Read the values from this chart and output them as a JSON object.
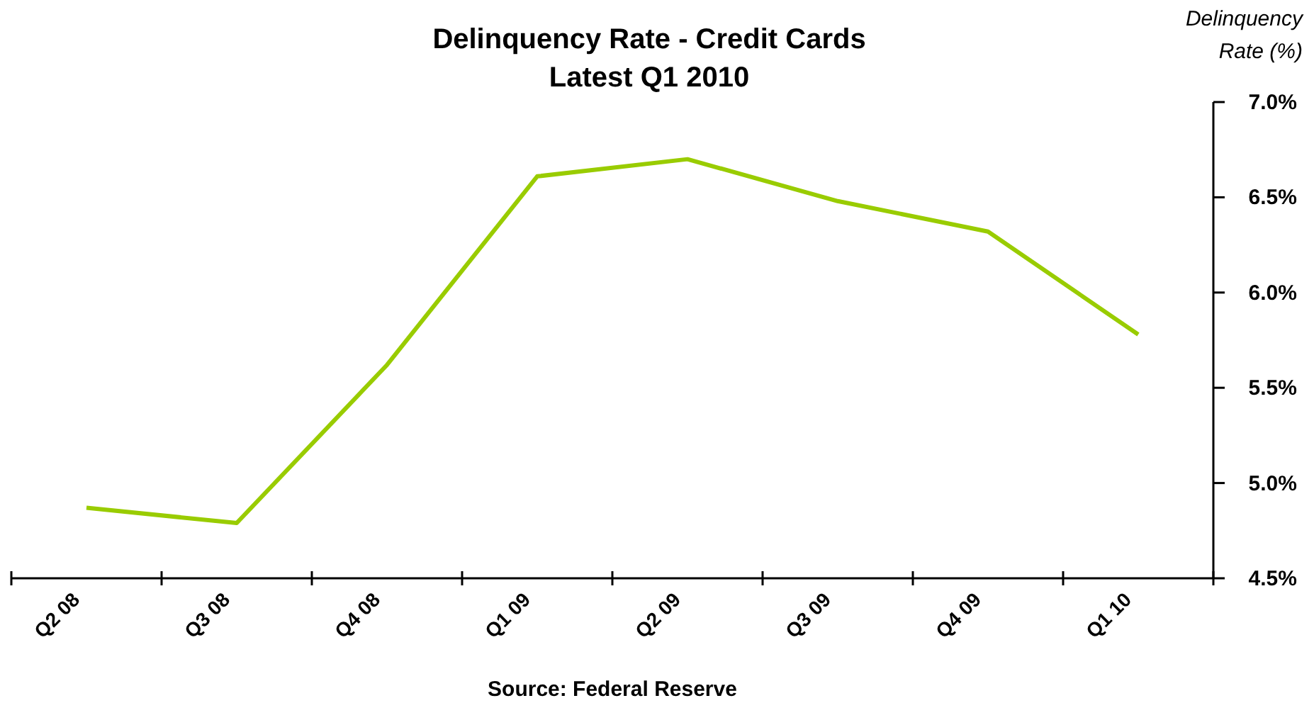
{
  "chart_data": {
    "type": "line",
    "title": "Delinquency Rate - Credit Cards",
    "subtitle": "Latest Q1 2010",
    "ylabel": "Delinquency Rate (%)",
    "categories": [
      "Q2 08",
      "Q3 08",
      "Q4 08",
      "Q1 09",
      "Q2 09",
      "Q3 09",
      "Q4 09",
      "Q1 10"
    ],
    "series": [
      {
        "color": "#99cc00",
        "values": [
          4.87,
          4.79,
          5.62,
          6.61,
          6.7,
          6.48,
          6.32,
          5.78
        ]
      }
    ],
    "ylim": [
      4.5,
      7.0
    ],
    "yticks": [
      {
        "value": 4.5,
        "label": "4.5%"
      },
      {
        "value": 5.0,
        "label": "5.0%"
      },
      {
        "value": 5.5,
        "label": "5.5%"
      },
      {
        "value": 6.0,
        "label": "6.0%"
      },
      {
        "value": 6.5,
        "label": "6.5%"
      },
      {
        "value": 7.0,
        "label": "7.0%"
      }
    ],
    "grid": false,
    "marker": "none",
    "line_style": "solid",
    "annotations": [
      "Source:  Federal Reserve"
    ]
  }
}
